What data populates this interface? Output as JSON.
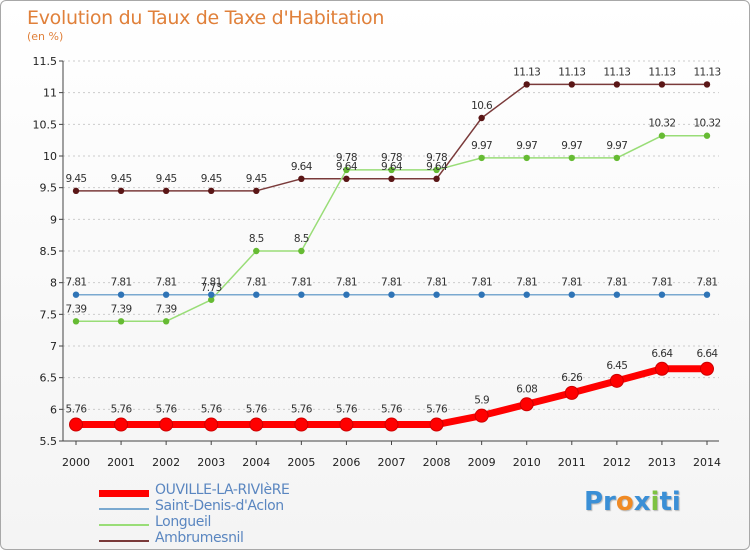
{
  "title": "Evolution du Taux de Taxe d'Habitation",
  "subtitle": "(en %)",
  "brand": {
    "parts": [
      "Pr",
      "o",
      "x",
      "i",
      "ti"
    ],
    "colors": [
      "#3a8fd6",
      "#f08a24",
      "#3a8fd6",
      "#7dc242",
      "#3a8fd6"
    ]
  },
  "chart_data": {
    "type": "line",
    "title": "Evolution du Taux de Taxe d'Habitation",
    "ylabel": "(en %)",
    "xlabel": "",
    "ylim": [
      5.5,
      11.5
    ],
    "yticks": [
      5.5,
      6,
      6.5,
      7,
      7.5,
      8,
      8.5,
      9,
      9.5,
      10,
      10.5,
      11,
      11.5
    ],
    "ytick_labels": [
      "5.5",
      "6",
      "6.5",
      "7",
      "7.5",
      "8",
      "8.5",
      "9",
      "9.5",
      "10",
      "10.5",
      "11",
      "11.5"
    ],
    "grid": "horizontal-dashed",
    "legend_position": "bottom-left",
    "x": [
      "2000",
      "2001",
      "2002",
      "2003",
      "2004",
      "2005",
      "2006",
      "2007",
      "2008",
      "2009",
      "2010",
      "2011",
      "2012",
      "2013",
      "2014"
    ],
    "series": [
      {
        "name": "OUVILLE-LA-RIVIèRE",
        "color": "#ff0000",
        "marker_color": "#ff0000",
        "width": 7,
        "values": [
          5.76,
          5.76,
          5.76,
          5.76,
          5.76,
          5.76,
          5.76,
          5.76,
          5.76,
          5.9,
          6.08,
          6.26,
          6.45,
          6.64,
          6.64
        ],
        "labels": [
          "5.76",
          "5.76",
          "5.76",
          "5.76",
          "5.76",
          "5.76",
          "5.76",
          "5.76",
          "5.76",
          "5.9",
          "6.08",
          "6.26",
          "6.45",
          "6.64",
          "6.64"
        ]
      },
      {
        "name": "Saint-Denis-d'Aclon",
        "color": "#7aa9d0",
        "marker_color": "#2f74b6",
        "width": 1.5,
        "values": [
          7.81,
          7.81,
          7.81,
          7.81,
          7.81,
          7.81,
          7.81,
          7.81,
          7.81,
          7.81,
          7.81,
          7.81,
          7.81,
          7.81,
          7.81
        ],
        "labels": [
          "7.81",
          "7.81",
          "7.81",
          "7.81",
          "7.81",
          "7.81",
          "7.81",
          "7.81",
          "7.81",
          "7.81",
          "7.81",
          "7.81",
          "7.81",
          "7.81",
          "7.81"
        ]
      },
      {
        "name": "Longueil",
        "color": "#99dd77",
        "marker_color": "#66bb33",
        "width": 1.5,
        "values": [
          7.39,
          7.39,
          7.39,
          7.73,
          8.5,
          8.5,
          9.78,
          9.78,
          9.78,
          9.97,
          9.97,
          9.97,
          9.97,
          10.32,
          10.32
        ],
        "labels": [
          "7.39",
          "7.39",
          "7.39",
          "7.73",
          "8.5",
          "8.5",
          "9.78",
          "9.78",
          "9.78",
          "9.97",
          "9.97",
          "9.97",
          "9.97",
          "10.32",
          "10.32"
        ]
      },
      {
        "name": "Ambrumesnil",
        "color": "#7a3a3a",
        "marker_color": "#5a1616",
        "width": 1.5,
        "values": [
          9.45,
          9.45,
          9.45,
          9.45,
          9.45,
          9.64,
          9.64,
          9.64,
          9.64,
          10.6,
          11.13,
          11.13,
          11.13,
          11.13,
          11.13
        ],
        "labels": [
          "9.45",
          "9.45",
          "9.45",
          "9.45",
          "9.45",
          "9.64",
          "9.64",
          "9.64",
          "9.64",
          "10.6",
          "11.13",
          "11.13",
          "11.13",
          "11.13",
          "11.13"
        ]
      }
    ]
  }
}
